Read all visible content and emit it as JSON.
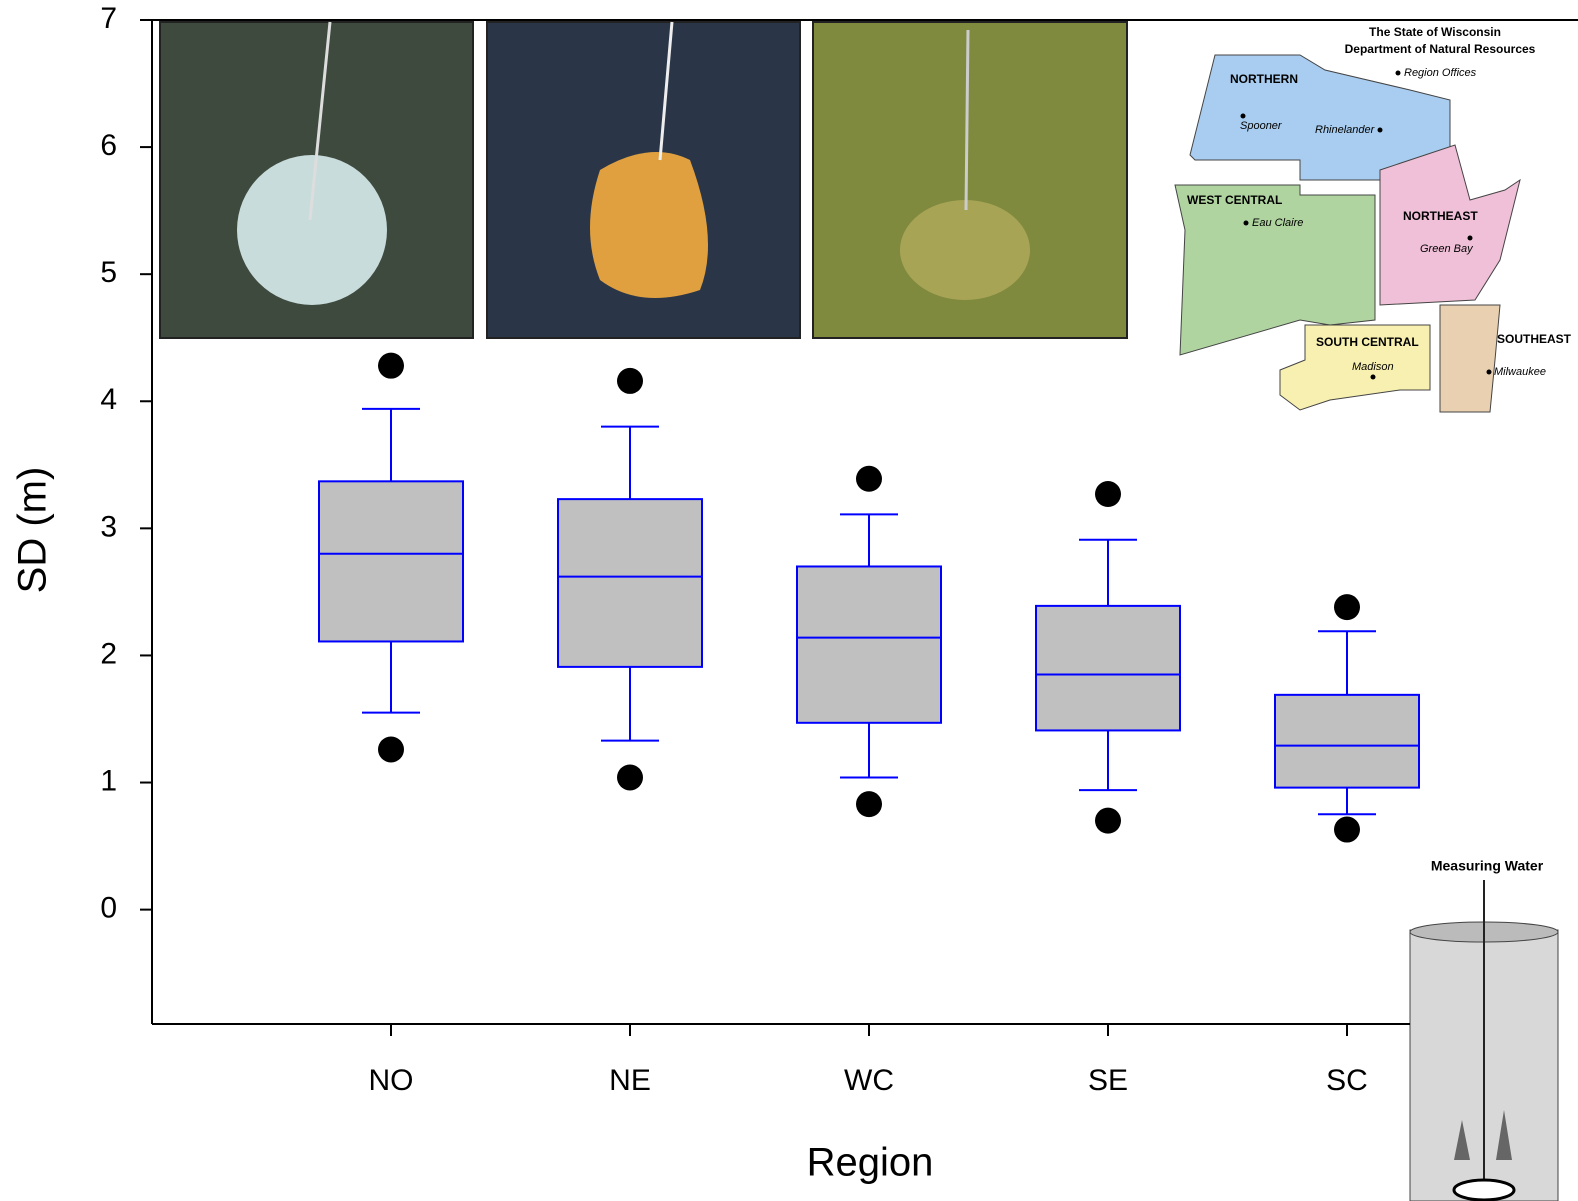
{
  "chart_data": {
    "type": "box",
    "x_label": "Region",
    "y_label": "SD (m)",
    "categories": [
      "NO",
      "NE",
      "WC",
      "SE",
      "SC"
    ],
    "whisker_low": [
      1.55,
      1.33,
      1.04,
      0.94,
      0.75
    ],
    "q1": [
      2.11,
      1.91,
      1.47,
      1.41,
      0.96
    ],
    "median": [
      2.8,
      2.62,
      2.14,
      1.85,
      1.29
    ],
    "q3": [
      3.37,
      3.23,
      2.7,
      2.39,
      1.69
    ],
    "whisker_high": [
      3.94,
      3.8,
      3.11,
      2.91,
      2.19
    ],
    "outliers": [
      [
        1.26,
        4.28
      ],
      [
        1.04,
        4.16
      ],
      [
        0.83,
        3.39
      ],
      [
        0.7,
        3.27
      ],
      [
        0.63,
        2.38
      ]
    ],
    "box_color": "#c0c0c0",
    "line_color": "#0000ff",
    "outlier_color": "#000000",
    "ylim": [
      -0.9,
      7
    ],
    "yticks": [
      0,
      1,
      2,
      3,
      4,
      5,
      6,
      7
    ]
  },
  "map": {
    "title": "The State of Wisconsin",
    "subtitle": "Department of Natural Resources",
    "legend": "Region Offices",
    "regions": [
      "NORTHERN",
      "WEST CENTRAL",
      "NORTHEAST",
      "SOUTH CENTRAL",
      "SOUTHEAST"
    ],
    "cities": [
      "Spooner",
      "Rhinelander",
      "Eau Claire",
      "Green Bay",
      "Madison",
      "Milwaukee"
    ]
  },
  "illustration": {
    "title": "Measuring Water"
  }
}
